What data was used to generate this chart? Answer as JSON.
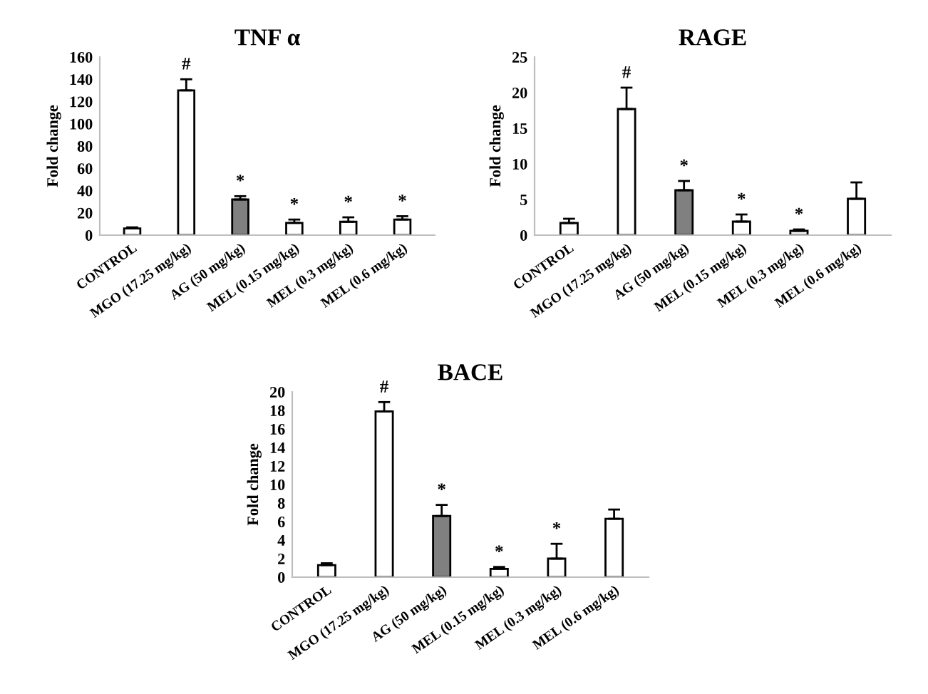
{
  "chart_data": [
    {
      "type": "bar",
      "title": "TNF α",
      "ylabel": "Fold change",
      "categories": [
        "CONTROL",
        "MGO (17.25 mg/kg)",
        "AG (50 mg/kg)",
        "MEL (0.15 mg/kg)",
        "MEL (0.3 mg/kg)",
        "MEL (0.6 mg/kg)"
      ],
      "values": [
        6,
        130,
        32,
        11,
        12,
        14
      ],
      "colors": [
        "#ffffff",
        "#ffffff",
        "#808080",
        "#ffffff",
        "#ffffff",
        "#ffffff"
      ],
      "errors": [
        [
          6,
          7
        ],
        [
          130,
          140
        ],
        [
          32,
          35
        ],
        [
          11,
          14
        ],
        [
          12,
          16
        ],
        [
          14,
          17
        ]
      ],
      "ylim": [
        0,
        160
      ],
      "yticks": [
        0,
        20,
        40,
        60,
        80,
        100,
        120,
        140,
        160
      ],
      "grid": false,
      "legend": false,
      "annotations": [
        {
          "text": "#",
          "x": "MGO (17.25 mg/kg)",
          "y": 140
        },
        {
          "text": "*",
          "x": "AG (50 mg/kg)",
          "y": 35
        },
        {
          "text": "*",
          "x": "MEL (0.15 mg/kg)",
          "y": 14
        },
        {
          "text": "*",
          "x": "MEL (0.3 mg/kg)",
          "y": 16
        },
        {
          "text": "*",
          "x": "MEL (0.6 mg/kg)",
          "y": 17
        }
      ]
    },
    {
      "type": "bar",
      "title": "RAGE",
      "ylabel": "Fold change",
      "categories": [
        "CONTROL",
        "MGO (17.25 mg/kg)",
        "AG (50 mg/kg)",
        "MEL (0.15 mg/kg)",
        "MEL (0.3 mg/kg)",
        "MEL (0.6 mg/kg)"
      ],
      "values": [
        1.7,
        17.7,
        6.3,
        1.9,
        0.6,
        5.1
      ],
      "colors": [
        "#ffffff",
        "#ffffff",
        "#808080",
        "#ffffff",
        "#ffffff",
        "#ffffff"
      ],
      "errors": [
        [
          1.7,
          2.3
        ],
        [
          17.7,
          20.7
        ],
        [
          6.3,
          7.6
        ],
        [
          1.9,
          2.9
        ],
        [
          0.6,
          0.8
        ],
        [
          5.1,
          7.4
        ]
      ],
      "ylim": [
        0,
        25
      ],
      "yticks": [
        0,
        5,
        10,
        15,
        20,
        25
      ],
      "grid": false,
      "legend": false,
      "annotations": [
        {
          "text": "#",
          "x": "MGO (17.25 mg/kg)",
          "y": 20.7
        },
        {
          "text": "*",
          "x": "AG (50 mg/kg)",
          "y": 7.6
        },
        {
          "text": "*",
          "x": "MEL (0.15 mg/kg)",
          "y": 2.9
        },
        {
          "text": "*",
          "x": "MEL (0.3 mg/kg)",
          "y": 0.8
        }
      ]
    },
    {
      "type": "bar",
      "title": "BACE",
      "ylabel": "Fold change",
      "categories": [
        "CONTROL",
        "MGO (17.25 mg/kg)",
        "AG (50 mg/kg)",
        "MEL (0.15 mg/kg)",
        "MEL (0.3 mg/kg)",
        "MEL (0.6 mg/kg)"
      ],
      "values": [
        1.3,
        17.9,
        6.6,
        0.9,
        2.0,
        6.3
      ],
      "colors": [
        "#ffffff",
        "#ffffff",
        "#808080",
        "#ffffff",
        "#ffffff",
        "#ffffff"
      ],
      "errors": [
        [
          1.3,
          1.5
        ],
        [
          17.9,
          18.9
        ],
        [
          6.6,
          7.8
        ],
        [
          0.9,
          1.1
        ],
        [
          2.0,
          3.6
        ],
        [
          6.3,
          7.3
        ]
      ],
      "ylim": [
        0,
        20
      ],
      "yticks": [
        0,
        2,
        4,
        6,
        8,
        10,
        12,
        14,
        16,
        18,
        20
      ],
      "grid": false,
      "legend": false,
      "annotations": [
        {
          "text": "#",
          "x": "MGO (17.25 mg/kg)",
          "y": 18.9
        },
        {
          "text": "*",
          "x": "AG (50 mg/kg)",
          "y": 7.8
        },
        {
          "text": "*",
          "x": "MEL (0.15 mg/kg)",
          "y": 1.1
        },
        {
          "text": "*",
          "x": "MEL (0.3 mg/kg)",
          "y": 3.6
        }
      ]
    }
  ]
}
